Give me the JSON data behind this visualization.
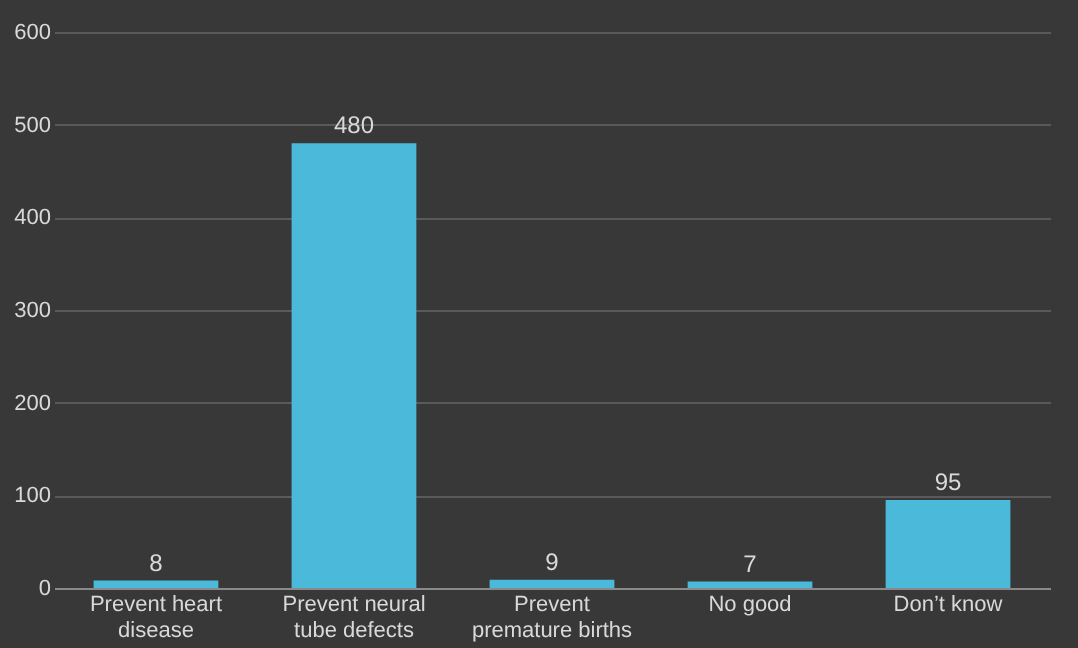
{
  "chart_data": {
    "type": "bar",
    "categories": [
      "Prevent heart disease",
      "Prevent neural tube defects",
      "Prevent premature births",
      "No good",
      "Don’t know"
    ],
    "values": [
      8,
      480,
      9,
      7,
      95
    ],
    "color": "#4bb9d9",
    "ylim": [
      0,
      600
    ],
    "yticks": [
      0,
      100,
      200,
      300,
      400,
      500,
      600
    ],
    "grid": "y",
    "data_labels": true
  }
}
